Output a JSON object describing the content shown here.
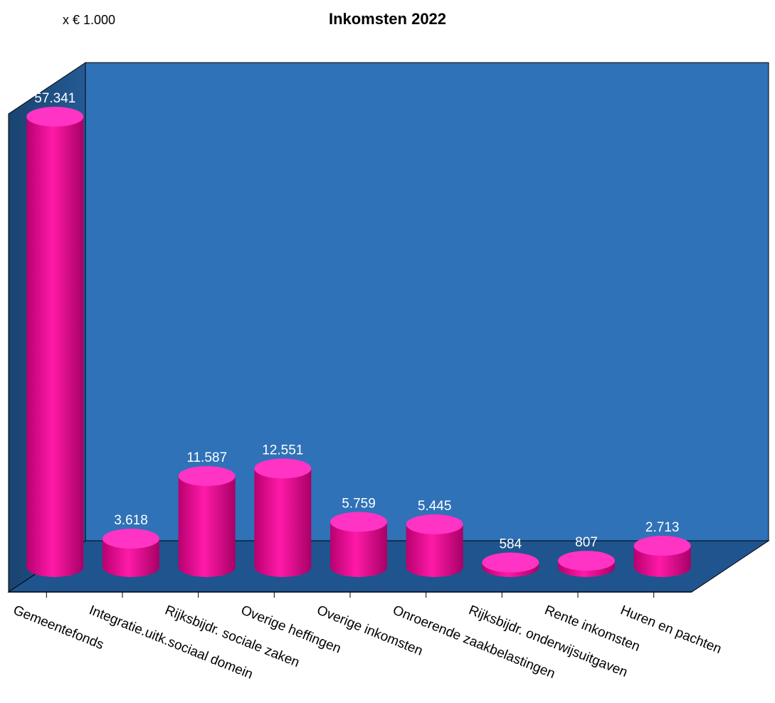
{
  "chart_data": {
    "type": "bar",
    "title": "Inkomsten 2022",
    "unit_label": "x € 1.000",
    "categories": [
      "Gemeentefonds",
      "Integratie.uitk.sociaal domein",
      "Rijksbijdr. sociale zaken",
      "Overige heffingen",
      "Overige inkomsten",
      "Onroerende zaakbelastingen",
      "Rijksbijdr. onderwijsuitgaven",
      "Rente inkomsten",
      "Huren en pachten"
    ],
    "values": [
      57341,
      3618,
      11587,
      12551,
      5759,
      5445,
      584,
      807,
      2713
    ],
    "value_labels": [
      "57.341",
      "3.618",
      "11.587",
      "12.551",
      "5.759",
      "5.445",
      "584",
      "807",
      "2.713"
    ],
    "ylim": [
      0,
      57341
    ],
    "grid": false,
    "legend": "none",
    "colors": {
      "bar": "#e0008f",
      "bar_top": "#ff33c4",
      "back_wall": "#2f72b8",
      "side_wall": "#1c4c82",
      "floor": "#1f548f"
    }
  }
}
